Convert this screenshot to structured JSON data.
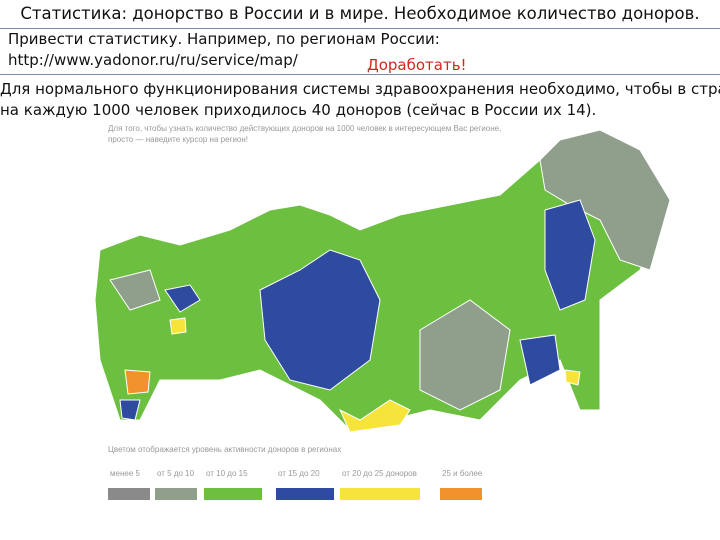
{
  "slide": {
    "title": "Статистика: донорство в России и в мире. Необходимое количество доноров.",
    "notes": [
      "Привести статистику. Например, по регионам России:",
      "http://www.yadonor.ru/ru/service/map/"
    ],
    "flag": "Доработать!",
    "body": [
      "Для нормального функционирования системы здравоохранения необходимо, чтобы в стране",
      "на каждую 1000 человек приходилось 40 доноров (сейчас в России их 14)."
    ]
  },
  "map": {
    "caption": [
      "Для того, чтобы узнать количество действующих доноров на 1000 человек в интересующем Вас регионе,",
      "просто — наведите курсор на регион!"
    ],
    "legend_title": "Цветом отображается уровень активности доноров в регионах",
    "legend": [
      {
        "label": "менее 5",
        "color": "#8a8a8a"
      },
      {
        "label": "от 5 до 10",
        "color": "#8f9f8c"
      },
      {
        "label": "от 10 до 15",
        "color": "#6dbf3f"
      },
      {
        "label": "от 15 до 20",
        "color": "#2f4b9f"
      },
      {
        "label": "от 20 до 25 доноров",
        "color": "#f7e43b"
      },
      {
        "label": "25 и более",
        "color": "#f2922a"
      }
    ]
  }
}
